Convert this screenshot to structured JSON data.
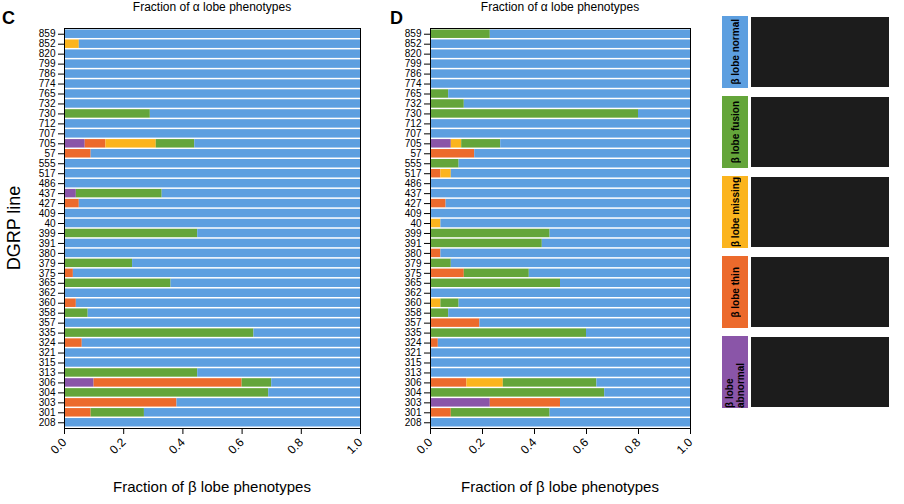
{
  "chart_data": [
    {
      "type": "bar",
      "title": "C",
      "orientation": "horizontal",
      "stacked": true,
      "legend": "right",
      "annotations": [
        "Fraction of α lobe phenotypes"
      ],
      "xlabel": "Fraction of β lobe phenotypes",
      "ylabel": "DGRP line",
      "xlim": [
        0,
        1
      ],
      "xticks": [
        {
          "value": 0,
          "label": "0.0"
        },
        {
          "value": 0.2,
          "label": "0.2"
        },
        {
          "value": 0.4,
          "label": "0.4"
        },
        {
          "value": 0.6,
          "label": "0.6"
        },
        {
          "value": 0.8,
          "label": "0.8"
        },
        {
          "value": 1,
          "label": "1.0"
        }
      ],
      "categories": [
        "859",
        "852",
        "820",
        "799",
        "786",
        "774",
        "765",
        "732",
        "730",
        "712",
        "707",
        "705",
        "57",
        "555",
        "517",
        "486",
        "437",
        "427",
        "409",
        "40",
        "399",
        "391",
        "380",
        "379",
        "375",
        "365",
        "362",
        "360",
        "358",
        "357",
        "335",
        "324",
        "321",
        "315",
        "313",
        "306",
        "304",
        "303",
        "301",
        "208"
      ],
      "series": [
        {
          "name": "β lobe abnormal",
          "color": "#8a55a8",
          "values": [
            0,
            0,
            0,
            0,
            0,
            0,
            0,
            0,
            0,
            0,
            0,
            0.07,
            0,
            0,
            0,
            0,
            0.04,
            0,
            0,
            0,
            0,
            0,
            0,
            0,
            0,
            0,
            0,
            0,
            0,
            0,
            0,
            0,
            0,
            0,
            0,
            0.1,
            0,
            0,
            0,
            0
          ]
        },
        {
          "name": "β lobe thin",
          "color": "#ec6a2c",
          "values": [
            0,
            0,
            0,
            0,
            0,
            0,
            0,
            0,
            0,
            0,
            0,
            0.07,
            0.09,
            0,
            0,
            0,
            0,
            0.05,
            0,
            0,
            0,
            0,
            0,
            0,
            0.03,
            0,
            0,
            0.04,
            0,
            0,
            0,
            0.06,
            0,
            0,
            0,
            0.5,
            0,
            0.38,
            0.09,
            0
          ]
        },
        {
          "name": "β lobe missing",
          "color": "#fbb41e",
          "values": [
            0,
            0.05,
            0,
            0,
            0,
            0,
            0,
            0,
            0,
            0,
            0,
            0.17,
            0,
            0,
            0,
            0,
            0,
            0,
            0,
            0,
            0,
            0,
            0,
            0,
            0,
            0,
            0,
            0,
            0,
            0,
            0,
            0,
            0,
            0,
            0,
            0,
            0,
            0,
            0,
            0
          ]
        },
        {
          "name": "β lobe fusion",
          "color": "#64a53a",
          "values": [
            0,
            0,
            0,
            0,
            0,
            0,
            0,
            0,
            0.29,
            0,
            0,
            0.13,
            0,
            0,
            0,
            0,
            0.29,
            0,
            0,
            0,
            0.45,
            0,
            0,
            0.23,
            0,
            0.36,
            0,
            0,
            0.08,
            0,
            0.64,
            0,
            0,
            0,
            0.45,
            0.1,
            0.69,
            0,
            0.18,
            0
          ]
        },
        {
          "name": "β lobe normal",
          "color": "#5d9fe0",
          "values": [
            1,
            0.95,
            1,
            1,
            1,
            1,
            1,
            1,
            0.71,
            1,
            1,
            0.56,
            0.91,
            1,
            1,
            1,
            0.67,
            0.95,
            1,
            1,
            0.55,
            1,
            1,
            0.77,
            0.97,
            0.64,
            1,
            0.96,
            0.92,
            1,
            0.36,
            0.94,
            1,
            1,
            0.55,
            0.3,
            0.31,
            0.62,
            0.73,
            1
          ]
        }
      ]
    },
    {
      "type": "bar",
      "title": "D",
      "orientation": "horizontal",
      "stacked": true,
      "legend": "right",
      "annotations": [
        "Fraction of α lobe phenotypes"
      ],
      "xlabel": "Fraction of β lobe phenotypes",
      "xlim": [
        0,
        1
      ],
      "xticks": [
        {
          "value": 0,
          "label": "0.0"
        },
        {
          "value": 0.2,
          "label": "0.2"
        },
        {
          "value": 0.4,
          "label": "0.4"
        },
        {
          "value": 0.6,
          "label": "0.6"
        },
        {
          "value": 0.8,
          "label": "0.8"
        },
        {
          "value": 1,
          "label": "1.0"
        }
      ],
      "categories": [
        "859",
        "852",
        "820",
        "799",
        "786",
        "774",
        "765",
        "732",
        "730",
        "712",
        "707",
        "705",
        "57",
        "555",
        "517",
        "486",
        "437",
        "427",
        "409",
        "40",
        "399",
        "391",
        "380",
        "379",
        "375",
        "365",
        "362",
        "360",
        "358",
        "357",
        "335",
        "324",
        "321",
        "315",
        "313",
        "306",
        "304",
        "303",
        "301",
        "208"
      ],
      "series": [
        {
          "name": "β lobe abnormal",
          "color": "#8a55a8",
          "values": [
            0,
            0,
            0,
            0,
            0,
            0,
            0,
            0,
            0,
            0,
            0,
            0.08,
            0,
            0,
            0,
            0,
            0,
            0,
            0,
            0,
            0,
            0,
            0,
            0,
            0,
            0,
            0,
            0,
            0,
            0,
            0,
            0,
            0,
            0,
            0,
            0,
            0,
            0.23,
            0,
            0
          ]
        },
        {
          "name": "β lobe thin",
          "color": "#ec6a2c",
          "values": [
            0,
            0,
            0,
            0,
            0,
            0,
            0,
            0,
            0,
            0,
            0,
            0,
            0.17,
            0,
            0.04,
            0,
            0,
            0.06,
            0,
            0,
            0,
            0,
            0.04,
            0,
            0.13,
            0,
            0,
            0,
            0,
            0.19,
            0,
            0.03,
            0,
            0,
            0,
            0.14,
            0,
            0.27,
            0.08,
            0
          ]
        },
        {
          "name": "β lobe missing",
          "color": "#fbb41e",
          "values": [
            0,
            0,
            0,
            0,
            0,
            0,
            0,
            0,
            0,
            0,
            0,
            0.04,
            0,
            0,
            0.04,
            0,
            0,
            0,
            0,
            0.04,
            0,
            0,
            0,
            0,
            0,
            0,
            0,
            0.04,
            0,
            0,
            0,
            0,
            0,
            0,
            0,
            0.14,
            0,
            0,
            0,
            0
          ]
        },
        {
          "name": "β lobe fusion",
          "color": "#64a53a",
          "values": [
            0.23,
            0,
            0,
            0,
            0,
            0,
            0.07,
            0.13,
            0.8,
            0,
            0,
            0.15,
            0,
            0.11,
            0,
            0,
            0,
            0,
            0,
            0,
            0.46,
            0.43,
            0,
            0.08,
            0.25,
            0.5,
            0,
            0.07,
            0.07,
            0,
            0.6,
            0,
            0,
            0,
            0,
            0.36,
            0.67,
            0,
            0.38,
            0
          ]
        },
        {
          "name": "β lobe normal",
          "color": "#5d9fe0",
          "values": [
            0.77,
            1,
            1,
            1,
            1,
            1,
            0.93,
            0.87,
            0.2,
            1,
            1,
            0.73,
            0.83,
            0.89,
            0.92,
            1,
            1,
            0.94,
            1,
            0.96,
            0.54,
            0.57,
            0.96,
            0.92,
            0.62,
            0.5,
            1,
            0.89,
            0.93,
            0.81,
            0.4,
            0.97,
            1,
            1,
            1,
            0.36,
            0.33,
            0.5,
            0.54,
            1
          ]
        }
      ]
    }
  ]
}
